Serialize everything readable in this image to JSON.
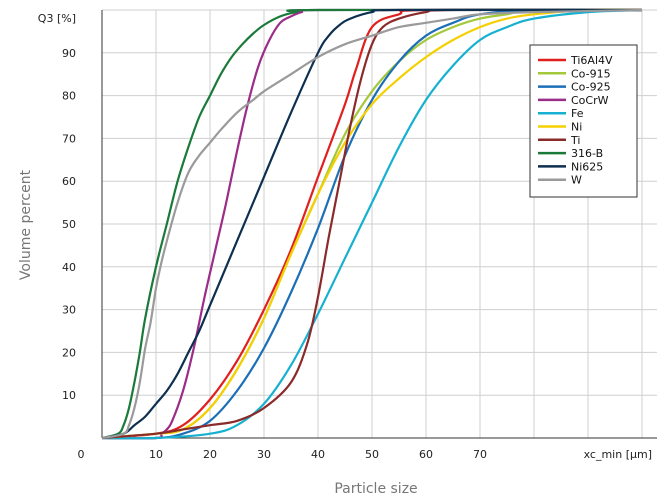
{
  "chart_data": {
    "type": "line",
    "xlabel": "Particle size",
    "ylabel": "Volume percent",
    "x_axis_label": "xc_min [µm]",
    "y_axis_label": "Q3 [%]",
    "xlim": [
      0,
      100
    ],
    "ylim": [
      0,
      100
    ],
    "x_ticks": [
      0,
      10,
      20,
      30,
      40,
      50,
      60,
      70
    ],
    "y_ticks": [
      10,
      20,
      30,
      40,
      50,
      60,
      70,
      80,
      90
    ],
    "grid": true,
    "legend_position": "top-right",
    "series": [
      {
        "name": "Ti6Al4V",
        "color": "#e0201e",
        "points": [
          [
            0,
            0
          ],
          [
            10,
            1
          ],
          [
            15,
            3
          ],
          [
            20,
            9
          ],
          [
            25,
            18
          ],
          [
            30,
            30
          ],
          [
            35,
            44
          ],
          [
            40,
            61
          ],
          [
            45,
            78
          ],
          [
            47,
            86
          ],
          [
            50,
            96
          ],
          [
            55,
            99
          ],
          [
            60,
            100
          ],
          [
            100,
            100
          ]
        ]
      },
      {
        "name": "Co-915",
        "color": "#a3c83a",
        "points": [
          [
            0,
            0
          ],
          [
            10,
            1
          ],
          [
            15,
            2
          ],
          [
            20,
            7
          ],
          [
            25,
            16
          ],
          [
            30,
            28
          ],
          [
            35,
            43
          ],
          [
            40,
            57
          ],
          [
            45,
            71
          ],
          [
            50,
            81
          ],
          [
            55,
            88
          ],
          [
            60,
            93
          ],
          [
            65,
            96
          ],
          [
            70,
            98
          ],
          [
            75,
            99
          ],
          [
            80,
            100
          ],
          [
            100,
            100
          ]
        ]
      },
      {
        "name": "Co-925",
        "color": "#1c6fb6",
        "points": [
          [
            0,
            0
          ],
          [
            10,
            0
          ],
          [
            15,
            1
          ],
          [
            20,
            4
          ],
          [
            25,
            11
          ],
          [
            30,
            21
          ],
          [
            35,
            34
          ],
          [
            40,
            49
          ],
          [
            45,
            66
          ],
          [
            50,
            79
          ],
          [
            55,
            88
          ],
          [
            60,
            94
          ],
          [
            65,
            97
          ],
          [
            70,
            99
          ],
          [
            80,
            100
          ],
          [
            100,
            100
          ]
        ]
      },
      {
        "name": "CoCrW",
        "color": "#9b2c88",
        "points": [
          [
            0,
            0
          ],
          [
            10,
            0
          ],
          [
            11,
            1
          ],
          [
            12,
            2
          ],
          [
            13,
            4
          ],
          [
            15,
            11
          ],
          [
            17,
            21
          ],
          [
            19,
            33
          ],
          [
            21,
            44
          ],
          [
            23,
            55
          ],
          [
            25,
            67
          ],
          [
            27,
            78
          ],
          [
            29,
            87
          ],
          [
            31,
            93
          ],
          [
            33,
            97
          ],
          [
            35,
            98.5
          ],
          [
            37,
            99.5
          ],
          [
            40,
            100
          ],
          [
            100,
            100
          ]
        ]
      },
      {
        "name": "Fe",
        "color": "#16b0d0",
        "points": [
          [
            0,
            0
          ],
          [
            10,
            0
          ],
          [
            20,
            1
          ],
          [
            25,
            3
          ],
          [
            30,
            8
          ],
          [
            35,
            17
          ],
          [
            40,
            29
          ],
          [
            45,
            42
          ],
          [
            50,
            55
          ],
          [
            55,
            68
          ],
          [
            60,
            79
          ],
          [
            65,
            87
          ],
          [
            70,
            93
          ],
          [
            75,
            96
          ],
          [
            80,
            98
          ],
          [
            90,
            99.5
          ],
          [
            100,
            100
          ]
        ]
      },
      {
        "name": "Ni",
        "color": "#f5d000",
        "points": [
          [
            0,
            0
          ],
          [
            10,
            1
          ],
          [
            15,
            2
          ],
          [
            20,
            7
          ],
          [
            25,
            16
          ],
          [
            30,
            28
          ],
          [
            35,
            43
          ],
          [
            40,
            57
          ],
          [
            45,
            69
          ],
          [
            50,
            78
          ],
          [
            55,
            84
          ],
          [
            60,
            89
          ],
          [
            65,
            93
          ],
          [
            70,
            96
          ],
          [
            75,
            98
          ],
          [
            80,
            99
          ],
          [
            90,
            100
          ],
          [
            100,
            100
          ]
        ]
      },
      {
        "name": "Ti",
        "color": "#8b2a2a",
        "points": [
          [
            0,
            0
          ],
          [
            10,
            1
          ],
          [
            15,
            2
          ],
          [
            20,
            3
          ],
          [
            25,
            4
          ],
          [
            30,
            7
          ],
          [
            35,
            13
          ],
          [
            38,
            22
          ],
          [
            40,
            33
          ],
          [
            42,
            47
          ],
          [
            44,
            60
          ],
          [
            46,
            73
          ],
          [
            48,
            84
          ],
          [
            50,
            92
          ],
          [
            52,
            96
          ],
          [
            55,
            98
          ],
          [
            60,
            99.5
          ],
          [
            65,
            100
          ],
          [
            100,
            100
          ]
        ]
      },
      {
        "name": "316-B",
        "color": "#1a7a3a",
        "points": [
          [
            0,
            0
          ],
          [
            3,
            1
          ],
          [
            4,
            3
          ],
          [
            5,
            7
          ],
          [
            6,
            13
          ],
          [
            7,
            20
          ],
          [
            8,
            28
          ],
          [
            10,
            40
          ],
          [
            12,
            50
          ],
          [
            14,
            60
          ],
          [
            16,
            68
          ],
          [
            18,
            75
          ],
          [
            20,
            80
          ],
          [
            22,
            85
          ],
          [
            24,
            89
          ],
          [
            26,
            92
          ],
          [
            28,
            94.5
          ],
          [
            30,
            96.5
          ],
          [
            33,
            98.5
          ],
          [
            36,
            99.5
          ],
          [
            40,
            100
          ],
          [
            100,
            100
          ]
        ]
      },
      {
        "name": "Ni625",
        "color": "#0e3050",
        "points": [
          [
            0,
            0
          ],
          [
            4,
            1
          ],
          [
            6,
            3
          ],
          [
            8,
            5
          ],
          [
            10,
            8
          ],
          [
            12,
            11
          ],
          [
            14,
            15
          ],
          [
            16,
            20
          ],
          [
            18,
            25
          ],
          [
            20,
            31
          ],
          [
            25,
            46
          ],
          [
            30,
            61
          ],
          [
            35,
            76
          ],
          [
            40,
            90
          ],
          [
            42,
            94
          ],
          [
            44,
            96.5
          ],
          [
            46,
            98
          ],
          [
            50,
            99.5
          ],
          [
            55,
            100
          ],
          [
            100,
            100
          ]
        ]
      },
      {
        "name": "W",
        "color": "#9a9a9a",
        "points": [
          [
            0,
            0
          ],
          [
            4,
            1
          ],
          [
            5,
            3
          ],
          [
            6,
            7
          ],
          [
            7,
            13
          ],
          [
            8,
            21
          ],
          [
            9,
            27
          ],
          [
            10,
            35
          ],
          [
            11,
            41
          ],
          [
            12,
            46
          ],
          [
            14,
            55
          ],
          [
            16,
            62
          ],
          [
            18,
            66
          ],
          [
            20,
            69
          ],
          [
            22,
            72
          ],
          [
            25,
            76
          ],
          [
            28,
            79
          ],
          [
            30,
            81
          ],
          [
            35,
            85
          ],
          [
            40,
            89
          ],
          [
            45,
            92
          ],
          [
            50,
            94
          ],
          [
            55,
            96
          ],
          [
            60,
            97
          ],
          [
            65,
            98
          ],
          [
            70,
            99
          ],
          [
            80,
            99.5
          ],
          [
            100,
            100
          ]
        ]
      }
    ]
  }
}
